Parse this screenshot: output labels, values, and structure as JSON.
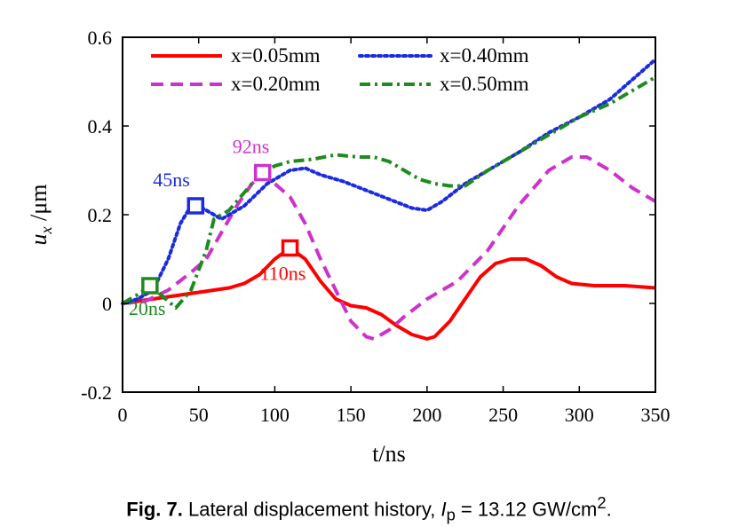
{
  "chart_data": {
    "type": "line",
    "xlabel": "t/ns",
    "ylabel_main": "u",
    "ylabel_sub": "x",
    "ylabel_unit": " /μm",
    "xlim": [
      0,
      350
    ],
    "ylim": [
      -0.2,
      0.6
    ],
    "xticks": [
      0,
      50,
      100,
      150,
      200,
      250,
      300,
      350
    ],
    "xtick_labels": [
      "0",
      "50",
      "100",
      "150",
      "200",
      "250",
      "300",
      "350"
    ],
    "yticks": [
      -0.2,
      0,
      0.2,
      0.4,
      0.6
    ],
    "ytick_labels": [
      "-0.2",
      "0",
      "0.2",
      "0.4",
      "0.6"
    ],
    "legend_position": "top",
    "series": [
      {
        "name": "x=0.05mm",
        "color": "#ff0000",
        "dash": "solid",
        "x": [
          0,
          10,
          30,
          50,
          70,
          80,
          90,
          100,
          110,
          120,
          130,
          140,
          150,
          160,
          170,
          180,
          190,
          200,
          205,
          215,
          225,
          235,
          245,
          255,
          265,
          275,
          285,
          295,
          310,
          330,
          350
        ],
        "y": [
          0,
          0.005,
          0.015,
          0.025,
          0.035,
          0.045,
          0.065,
          0.1,
          0.125,
          0.1,
          0.05,
          0.01,
          -0.005,
          -0.01,
          -0.025,
          -0.05,
          -0.07,
          -0.08,
          -0.075,
          -0.04,
          0.01,
          0.06,
          0.09,
          0.1,
          0.1,
          0.085,
          0.06,
          0.045,
          0.04,
          0.04,
          0.035
        ]
      },
      {
        "name": "x=0.20mm",
        "color": "#cc33cc",
        "dash": "dash",
        "x": [
          0,
          15,
          30,
          45,
          55,
          65,
          75,
          85,
          92,
          100,
          110,
          120,
          130,
          140,
          150,
          160,
          165,
          175,
          185,
          200,
          220,
          240,
          260,
          280,
          295,
          305,
          320,
          335,
          350
        ],
        "y": [
          0,
          0.005,
          0.03,
          0.07,
          0.1,
          0.16,
          0.22,
          0.27,
          0.29,
          0.27,
          0.24,
          0.18,
          0.1,
          0.03,
          -0.04,
          -0.075,
          -0.08,
          -0.06,
          -0.03,
          0.01,
          0.05,
          0.12,
          0.22,
          0.3,
          0.33,
          0.33,
          0.3,
          0.26,
          0.23
        ]
      },
      {
        "name": "x=0.40mm",
        "color": "#1a2be0",
        "dash": "dot",
        "x": [
          0,
          10,
          20,
          30,
          38,
          45,
          50,
          55,
          65,
          80,
          95,
          110,
          120,
          130,
          145,
          160,
          175,
          190,
          200,
          210,
          225,
          240,
          260,
          280,
          300,
          320,
          340,
          350
        ],
        "y": [
          0,
          0.01,
          0.03,
          0.1,
          0.18,
          0.22,
          0.22,
          0.21,
          0.19,
          0.22,
          0.27,
          0.3,
          0.305,
          0.29,
          0.275,
          0.255,
          0.235,
          0.215,
          0.21,
          0.23,
          0.27,
          0.3,
          0.34,
          0.385,
          0.42,
          0.46,
          0.52,
          0.55
        ]
      },
      {
        "name": "x=0.50mm",
        "color": "#1f8a1f",
        "dash": "dashdot",
        "x": [
          0,
          10,
          18,
          25,
          35,
          45,
          55,
          60,
          70,
          80,
          90,
          100,
          110,
          125,
          140,
          155,
          165,
          175,
          185,
          195,
          205,
          215,
          225,
          240,
          260,
          280,
          300,
          320,
          340,
          350
        ],
        "y": [
          0,
          0.02,
          0.04,
          0.02,
          -0.01,
          0.03,
          0.12,
          0.19,
          0.21,
          0.25,
          0.29,
          0.31,
          0.32,
          0.325,
          0.335,
          0.33,
          0.33,
          0.32,
          0.3,
          0.28,
          0.27,
          0.265,
          0.265,
          0.3,
          0.34,
          0.38,
          0.42,
          0.45,
          0.49,
          0.51
        ]
      }
    ],
    "markers": [
      {
        "label": "20ns",
        "x": 18,
        "y": 0.04,
        "color": "#1f8a1f"
      },
      {
        "label": "45ns",
        "x": 48,
        "y": 0.22,
        "color": "#1a2be0"
      },
      {
        "label": "92ns",
        "x": 92,
        "y": 0.295,
        "color": "#cc33cc"
      },
      {
        "label": "110ns",
        "x": 110,
        "y": 0.125,
        "color": "#ff0000"
      }
    ]
  },
  "caption": {
    "fig_label": "Fig. 7.",
    "text_before": " Lateral displacement history, ",
    "var_main": "I",
    "var_sub": "p",
    "text_mid": " = 13.12 GW/cm",
    "sup": "2",
    "text_after": "."
  }
}
